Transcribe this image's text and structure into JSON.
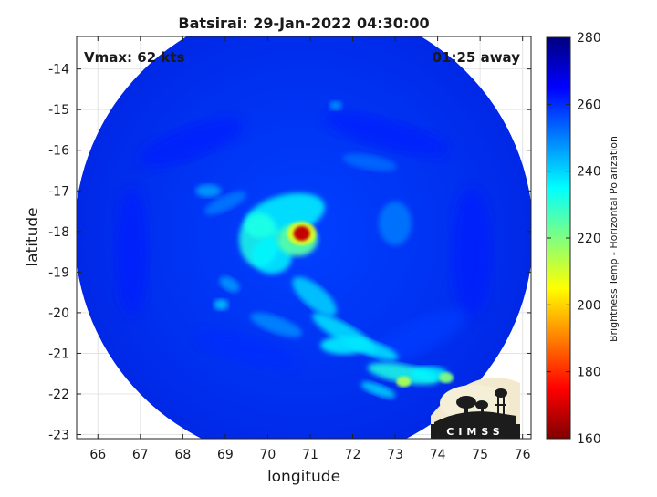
{
  "chart_data": {
    "type": "heatmap",
    "title": "Batsirai: 29-Jan-2022 04:30:00",
    "xlabel": "longitude",
    "ylabel": "latitude",
    "xlim": [
      65.5,
      76.2
    ],
    "ylim": [
      -23.1,
      -13.2
    ],
    "x_ticks": [
      66,
      67,
      68,
      69,
      70,
      71,
      72,
      73,
      74,
      75,
      76
    ],
    "y_ticks": [
      -14,
      -15,
      -16,
      -17,
      -18,
      -19,
      -20,
      -21,
      -22,
      -23
    ],
    "grid": true,
    "annotations": {
      "vmax": "Vmax: 62 kts",
      "time_offset": "01:25 away"
    },
    "storm_center": {
      "lon": 70.8,
      "lat": -18.05
    },
    "swath": {
      "center_lon": 70.85,
      "center_lat": -18.05,
      "radius_deg": 5.4
    },
    "colorbar": {
      "label": "Brightness Temp - Horizontal Polarization",
      "min": 160,
      "max": 280,
      "ticks": [
        280,
        260,
        240,
        220,
        200,
        180,
        160
      ],
      "colormap": [
        "#800000",
        "#ff0000",
        "#ff8000",
        "#ffff00",
        "#80ff80",
        "#00ffff",
        "#0080ff",
        "#0000ff",
        "#000080"
      ]
    },
    "features": [
      {
        "name": "eye-core",
        "lon": 70.8,
        "lat": -18.05,
        "value": 165
      },
      {
        "name": "eyewall",
        "lon": 70.7,
        "lat": -18.2,
        "value": 225
      },
      {
        "name": "inner-band",
        "lon": 69.8,
        "lat": -17.9,
        "value": 232
      },
      {
        "name": "outer-band",
        "lon": 71.8,
        "lat": -20.8,
        "value": 238
      },
      {
        "name": "band-cell-a",
        "lon": 73.2,
        "lat": -21.7,
        "value": 215
      },
      {
        "name": "band-cell-b",
        "lon": 74.2,
        "lat": -21.6,
        "value": 220
      }
    ]
  },
  "logo": {
    "text": "CIMSS"
  }
}
